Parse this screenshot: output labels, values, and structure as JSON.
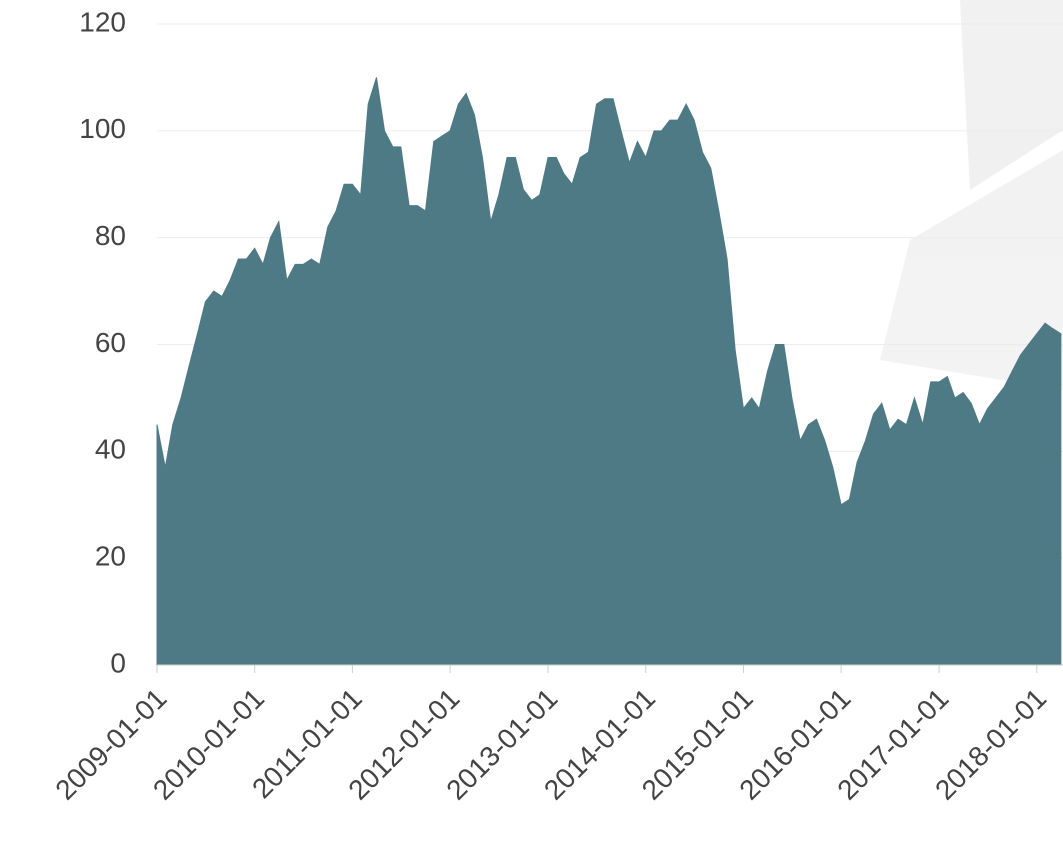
{
  "chart_data": {
    "type": "area",
    "color": "#4e7a86",
    "grid": true,
    "x": [
      "2009-01-01",
      "2009-02-01",
      "2009-03-01",
      "2009-04-01",
      "2009-05-01",
      "2009-06-01",
      "2009-07-01",
      "2009-08-01",
      "2009-09-01",
      "2009-10-01",
      "2009-11-01",
      "2009-12-01",
      "2010-01-01",
      "2010-02-01",
      "2010-03-01",
      "2010-04-01",
      "2010-05-01",
      "2010-06-01",
      "2010-07-01",
      "2010-08-01",
      "2010-09-01",
      "2010-10-01",
      "2010-11-01",
      "2010-12-01",
      "2011-01-01",
      "2011-02-01",
      "2011-03-01",
      "2011-04-01",
      "2011-05-01",
      "2011-06-01",
      "2011-07-01",
      "2011-08-01",
      "2011-09-01",
      "2011-10-01",
      "2011-11-01",
      "2011-12-01",
      "2012-01-01",
      "2012-02-01",
      "2012-03-01",
      "2012-04-01",
      "2012-05-01",
      "2012-06-01",
      "2012-07-01",
      "2012-08-01",
      "2012-09-01",
      "2012-10-01",
      "2012-11-01",
      "2012-12-01",
      "2013-01-01",
      "2013-02-01",
      "2013-03-01",
      "2013-04-01",
      "2013-05-01",
      "2013-06-01",
      "2013-07-01",
      "2013-08-01",
      "2013-09-01",
      "2013-10-01",
      "2013-11-01",
      "2013-12-01",
      "2014-01-01",
      "2014-02-01",
      "2014-03-01",
      "2014-04-01",
      "2014-05-01",
      "2014-06-01",
      "2014-07-01",
      "2014-08-01",
      "2014-09-01",
      "2014-10-01",
      "2014-11-01",
      "2014-12-01",
      "2015-01-01",
      "2015-02-01",
      "2015-03-01",
      "2015-04-01",
      "2015-05-01",
      "2015-06-01",
      "2015-07-01",
      "2015-08-01",
      "2015-09-01",
      "2015-10-01",
      "2015-11-01",
      "2015-12-01",
      "2016-01-01",
      "2016-02-01",
      "2016-03-01",
      "2016-04-01",
      "2016-05-01",
      "2016-06-01",
      "2016-07-01",
      "2016-08-01",
      "2016-09-01",
      "2016-10-01",
      "2016-11-01",
      "2016-12-01",
      "2017-01-01",
      "2017-02-01",
      "2017-03-01",
      "2017-04-01",
      "2017-05-01",
      "2017-06-01",
      "2017-07-01",
      "2017-08-01",
      "2017-09-01",
      "2017-10-01",
      "2017-11-01",
      "2017-12-01",
      "2018-01-01",
      "2018-02-01",
      "2018-03-01",
      "2018-04-01"
    ],
    "values": [
      45,
      37,
      45,
      50,
      56,
      62,
      68,
      70,
      69,
      72,
      76,
      76,
      78,
      75,
      80,
      83,
      72,
      75,
      75,
      76,
      75,
      82,
      85,
      90,
      90,
      88,
      105,
      110,
      100,
      97,
      97,
      86,
      86,
      85,
      98,
      99,
      100,
      105,
      107,
      103,
      95,
      83,
      88,
      95,
      95,
      89,
      87,
      88,
      95,
      95,
      92,
      90,
      95,
      96,
      105,
      106,
      106,
      100,
      94,
      98,
      95,
      100,
      100,
      102,
      102,
      105,
      102,
      96,
      93,
      85,
      76,
      59,
      48,
      50,
      48,
      55,
      60,
      60,
      50,
      42,
      45,
      46,
      42,
      37,
      30,
      31,
      38,
      42,
      47,
      49,
      44,
      46,
      45,
      50,
      45,
      53,
      53,
      54,
      50,
      51,
      49,
      45,
      48,
      50,
      52,
      55,
      58,
      60,
      62,
      64,
      63,
      62
    ],
    "xlim": [
      "2009-01-01",
      "2018-04-09"
    ],
    "xticks": [
      "2009-01-01",
      "2010-01-01",
      "2011-01-01",
      "2012-01-01",
      "2013-01-01",
      "2014-01-01",
      "2015-01-01",
      "2016-01-01",
      "2017-01-01",
      "2018-01-01"
    ],
    "ylim": [
      0,
      120
    ],
    "yticks": [
      0,
      20,
      40,
      60,
      80,
      100,
      120
    ]
  }
}
